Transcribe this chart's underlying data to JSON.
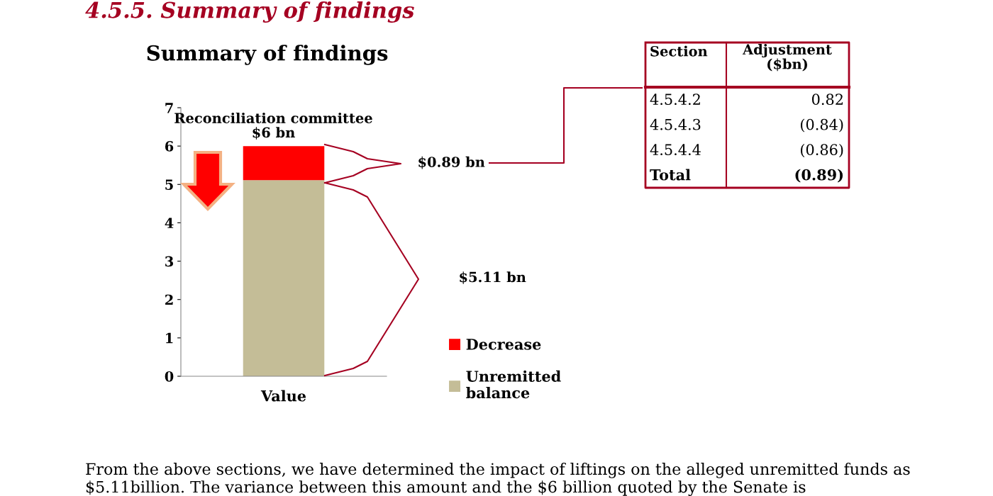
{
  "chart_data": {
    "type": "bar",
    "title": "Summary of findings",
    "stacked": true,
    "categories": [
      "Value"
    ],
    "series": [
      {
        "name": "Unremitted balance",
        "color": "#c4bd97",
        "values": [
          5.11
        ]
      },
      {
        "name": "Decrease",
        "color": "#ff0000",
        "values": [
          0.89
        ]
      }
    ],
    "ylim": [
      0,
      7
    ],
    "yticks": [
      0,
      1,
      2,
      3,
      4,
      5,
      6,
      7
    ],
    "grid": false,
    "legend": "bottom right",
    "annotations": [
      "Reconciliation committee\n$6 bn",
      "$0.89 bn",
      "$5.11 bn",
      "4.5.5. Summary of findings",
      "From the above sections, we have determined the impact of liftings on the alleged unremitted funds as $5.11billion. The variance between this amount and the $6 billion quoted by the Senate is",
      "Section",
      "Adjustment\n($bn)",
      "4.5.4.2",
      "0.82",
      "4.5.4.3",
      "(0.84)",
      "4.5.4.4",
      "(0.86)",
      "Total",
      "(0.89)"
    ]
  }
}
